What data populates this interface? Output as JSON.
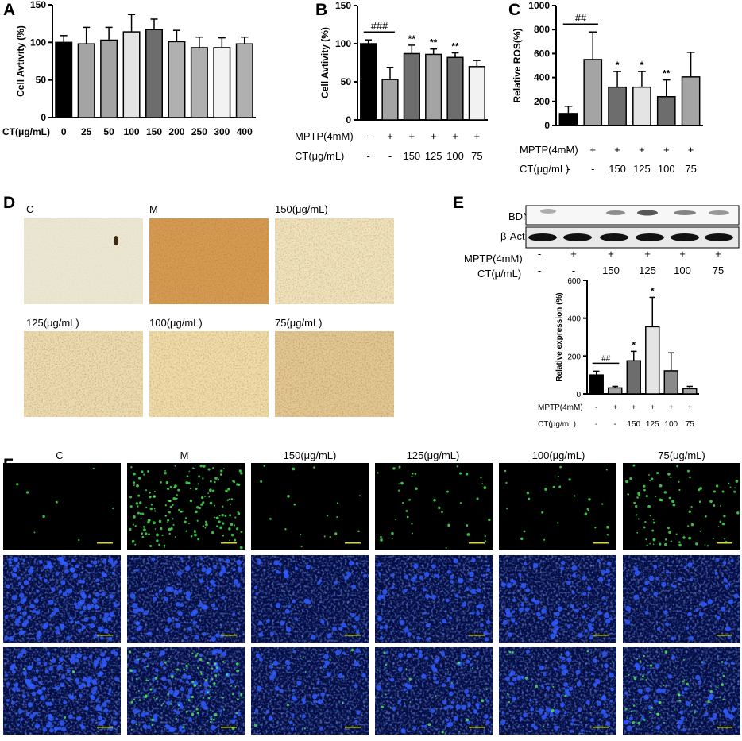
{
  "panels": {
    "A": {
      "label": "A"
    },
    "B": {
      "label": "B"
    },
    "C": {
      "label": "C"
    },
    "D": {
      "label": "D",
      "captions": [
        "C",
        "M",
        "150(μg/mL)",
        "125(μg/mL)",
        "100(μg/mL)",
        "75(μg/mL)"
      ]
    },
    "E": {
      "label": "E",
      "blot_labels": [
        "BDNF",
        "β-Actin"
      ],
      "row1_label": "MPTP(4mM)",
      "row1_values": [
        "-",
        "+",
        "+",
        "+",
        "+",
        "+"
      ],
      "row2_label": "CT(μ/mL)",
      "row2_values": [
        "-",
        "-",
        "150",
        "125",
        "100",
        "75"
      ]
    },
    "F": {
      "label": "F",
      "captions": [
        "C",
        "M",
        "150(μg/mL)",
        "125(μg/mL)",
        "100(μg/mL)",
        "75(μg/mL)"
      ]
    }
  },
  "chart_data": [
    {
      "id": "A",
      "type": "bar",
      "ylabel": "Cell Avtivity (%)",
      "xlabel": "CT(μg/mL)",
      "ylim": [
        0,
        150
      ],
      "yticks": [
        0,
        50,
        100,
        150
      ],
      "categories": [
        "0",
        "25",
        "50",
        "100",
        "150",
        "200",
        "250",
        "300",
        "400"
      ],
      "values": [
        100,
        98,
        103,
        114,
        117,
        101,
        93,
        93,
        98
      ],
      "errors": [
        9,
        22,
        17,
        23,
        14,
        15,
        14,
        13,
        9
      ],
      "colors": [
        "#000000",
        "#a4a4a4",
        "#a4a4a4",
        "#e4e4e4",
        "#6d6d6d",
        "#b0b0b0",
        "#b0b0b0",
        "#f2f2f2",
        "#b0b0b0"
      ],
      "row_labels": [
        {
          "label": "CT(μg/mL)",
          "values": [
            "0",
            "25",
            "50",
            "100",
            "150",
            "200",
            "250",
            "300",
            "400"
          ]
        }
      ],
      "annotations": []
    },
    {
      "id": "B",
      "type": "bar",
      "ylabel": "Cell Avtivity (%)",
      "xlabel": "",
      "ylim": [
        0,
        150
      ],
      "yticks": [
        0,
        50,
        100,
        150
      ],
      "categories": [
        "1",
        "2",
        "3",
        "4",
        "5",
        "6"
      ],
      "values": [
        100,
        53,
        87,
        86,
        82,
        70
      ],
      "errors": [
        5,
        16,
        11,
        7,
        6,
        8
      ],
      "colors": [
        "#000000",
        "#a4a4a4",
        "#6d6d6d",
        "#a4a4a4",
        "#6d6d6d",
        "#f2f2f2"
      ],
      "row_labels": [
        {
          "label": "MPTP(4mM)",
          "values": [
            "-",
            "+",
            "+",
            "+",
            "+",
            "+"
          ]
        },
        {
          "label": "CT(μg/mL)",
          "values": [
            "-",
            "-",
            "150",
            "125",
            "100",
            "75"
          ]
        }
      ],
      "annotations": [
        {
          "text": "###",
          "from": 0,
          "to": 1,
          "kind": "bracket"
        },
        {
          "text": "**",
          "bar": 2
        },
        {
          "text": "**",
          "bar": 3
        },
        {
          "text": "**",
          "bar": 4
        }
      ]
    },
    {
      "id": "C",
      "type": "bar",
      "ylabel": "Relative ROS(%)",
      "xlabel": "",
      "ylim": [
        0,
        1000
      ],
      "yticks": [
        0,
        200,
        400,
        600,
        800,
        1000
      ],
      "categories": [
        "1",
        "2",
        "3",
        "4",
        "5",
        "6"
      ],
      "values": [
        100,
        550,
        320,
        320,
        240,
        405
      ],
      "errors": [
        60,
        230,
        130,
        130,
        140,
        205
      ],
      "colors": [
        "#000000",
        "#a4a4a4",
        "#6d6d6d",
        "#e4e4e4",
        "#6d6d6d",
        "#a4a4a4"
      ],
      "row_labels": [
        {
          "label": "MPTP(4mM)",
          "values": [
            "-",
            "+",
            "+",
            "+",
            "+",
            "+"
          ]
        },
        {
          "label": "CT(μg/mL)",
          "values": [
            "-",
            "-",
            "150",
            "125",
            "100",
            "75"
          ]
        }
      ],
      "annotations": [
        {
          "text": "##",
          "from": 0,
          "to": 1,
          "kind": "bracket"
        },
        {
          "text": "*",
          "bar": 2
        },
        {
          "text": "*",
          "bar": 3
        },
        {
          "text": "**",
          "bar": 4
        }
      ]
    },
    {
      "id": "E",
      "type": "bar",
      "ylabel": "Relative expression (%)",
      "xlabel": "",
      "ylim": [
        0,
        600
      ],
      "yticks": [
        0,
        200,
        400,
        600
      ],
      "categories": [
        "1",
        "2",
        "3",
        "4",
        "5",
        "6"
      ],
      "values": [
        100,
        32,
        175,
        355,
        122,
        28
      ],
      "errors": [
        20,
        8,
        50,
        155,
        95,
        12
      ],
      "colors": [
        "#000000",
        "#a4a4a4",
        "#6d6d6d",
        "#e4e4e4",
        "#8a8a8a",
        "#a4a4a4"
      ],
      "row_labels": [
        {
          "label": "MPTP(4mM)",
          "values": [
            "-",
            "+",
            "+",
            "+",
            "+",
            "+"
          ]
        },
        {
          "label": "CT(μg/mL)",
          "values": [
            "-",
            "-",
            "150",
            "125",
            "100",
            "75"
          ]
        }
      ],
      "annotations": [
        {
          "text": "##",
          "from": 0,
          "to": 1,
          "kind": "bracket"
        },
        {
          "text": "*",
          "bar": 2
        },
        {
          "text": "*",
          "bar": 3
        }
      ]
    }
  ]
}
